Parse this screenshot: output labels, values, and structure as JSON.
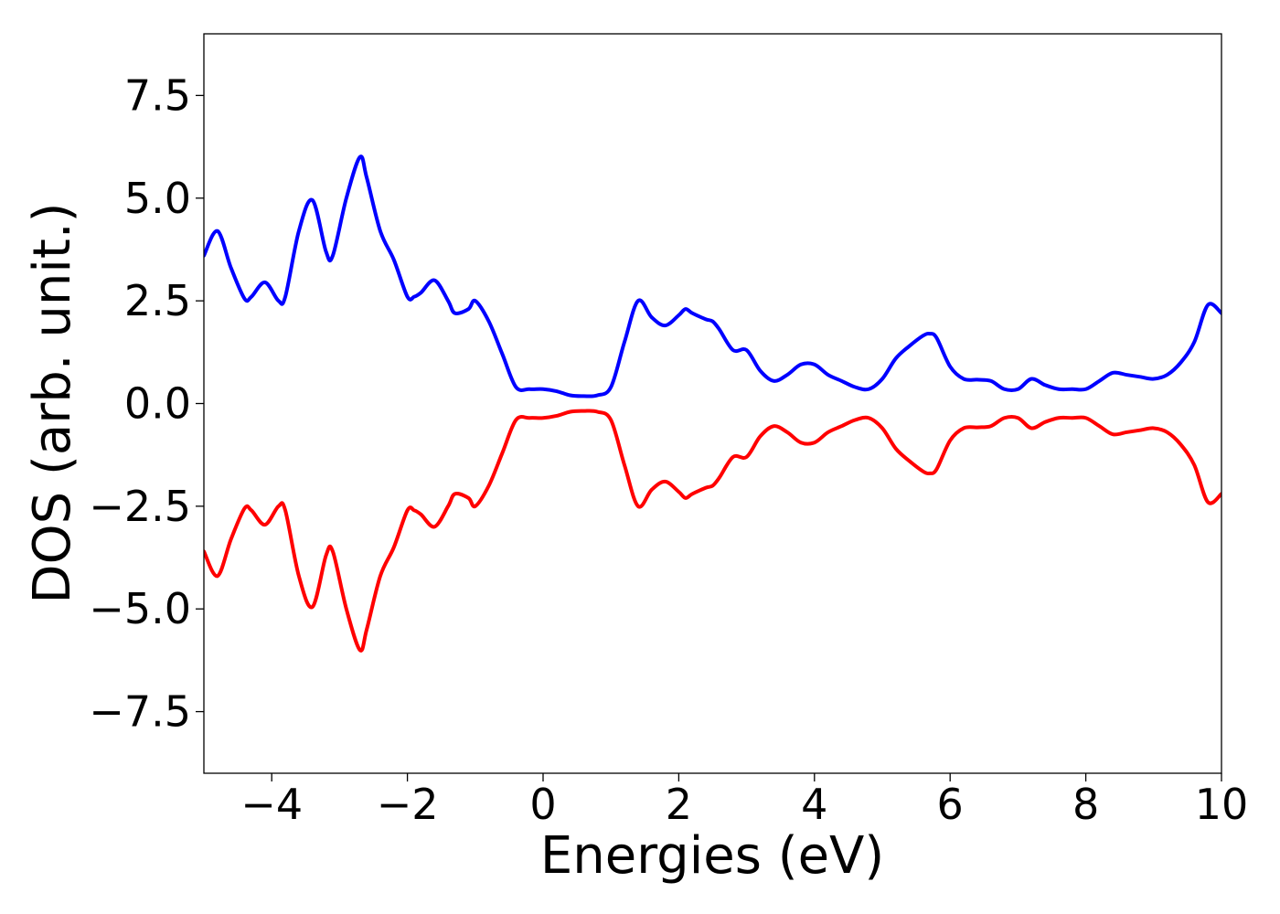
{
  "chart_data": {
    "type": "line",
    "title": "",
    "xlabel": "Energies (eV)",
    "ylabel": "DOS (arb. unit.)",
    "xlim": [
      -5,
      10
    ],
    "ylim": [
      -9,
      9
    ],
    "x_ticks": [
      -4,
      -2,
      0,
      2,
      4,
      6,
      8,
      10
    ],
    "x_tick_labels": [
      "−4",
      "−2",
      "0",
      "2",
      "4",
      "6",
      "8",
      "10"
    ],
    "y_ticks": [
      -7.5,
      -5.0,
      -2.5,
      0.0,
      2.5,
      5.0,
      7.5
    ],
    "y_tick_labels": [
      "−7.5",
      "−5.0",
      "−2.5",
      "0.0",
      "2.5",
      "5.0",
      "7.5"
    ],
    "grid": false,
    "legend": "none",
    "mirror_series": true,
    "x": [
      -5.0,
      -4.8,
      -4.6,
      -4.4,
      -4.3,
      -4.1,
      -3.9,
      -3.8,
      -3.6,
      -3.4,
      -3.2,
      -3.1,
      -2.9,
      -2.7,
      -2.6,
      -2.4,
      -2.2,
      -2.0,
      -1.9,
      -1.8,
      -1.6,
      -1.4,
      -1.3,
      -1.1,
      -1.0,
      -0.8,
      -0.6,
      -0.4,
      -0.2,
      0.0,
      0.2,
      0.4,
      0.6,
      0.8,
      1.0,
      1.2,
      1.4,
      1.6,
      1.8,
      2.0,
      2.1,
      2.2,
      2.4,
      2.5,
      2.6,
      2.8,
      3.0,
      3.2,
      3.4,
      3.6,
      3.8,
      4.0,
      4.2,
      4.4,
      4.6,
      4.8,
      5.0,
      5.2,
      5.4,
      5.6,
      5.7,
      5.8,
      6.0,
      6.2,
      6.4,
      6.6,
      6.8,
      7.0,
      7.2,
      7.4,
      7.6,
      7.8,
      8.0,
      8.2,
      8.4,
      8.6,
      8.8,
      9.0,
      9.2,
      9.4,
      9.6,
      9.8,
      10.0
    ],
    "series": [
      {
        "color": "#0000ff",
        "values": [
          3.6,
          4.2,
          3.3,
          2.55,
          2.6,
          2.95,
          2.5,
          2.6,
          4.2,
          4.95,
          3.7,
          3.6,
          5.0,
          6.0,
          5.5,
          4.2,
          3.5,
          2.6,
          2.6,
          2.7,
          3.0,
          2.5,
          2.2,
          2.3,
          2.5,
          2.0,
          1.2,
          0.4,
          0.35,
          0.35,
          0.3,
          0.2,
          0.18,
          0.2,
          0.4,
          1.5,
          2.5,
          2.1,
          1.9,
          2.15,
          2.3,
          2.2,
          2.05,
          2.0,
          1.8,
          1.3,
          1.3,
          0.8,
          0.55,
          0.7,
          0.95,
          0.95,
          0.7,
          0.55,
          0.4,
          0.35,
          0.6,
          1.1,
          1.4,
          1.65,
          1.7,
          1.6,
          0.9,
          0.6,
          0.58,
          0.55,
          0.35,
          0.35,
          0.6,
          0.45,
          0.35,
          0.35,
          0.35,
          0.55,
          0.75,
          0.7,
          0.65,
          0.6,
          0.7,
          1.0,
          1.5,
          2.4,
          2.2
        ]
      },
      {
        "color": "#ff0000",
        "values": [
          -3.6,
          -4.2,
          -3.3,
          -2.55,
          -2.6,
          -2.95,
          -2.5,
          -2.6,
          -4.2,
          -4.95,
          -3.7,
          -3.6,
          -5.0,
          -6.0,
          -5.5,
          -4.2,
          -3.5,
          -2.6,
          -2.6,
          -2.7,
          -3.0,
          -2.5,
          -2.2,
          -2.3,
          -2.5,
          -2.0,
          -1.2,
          -0.4,
          -0.35,
          -0.35,
          -0.3,
          -0.2,
          -0.18,
          -0.2,
          -0.4,
          -1.5,
          -2.5,
          -2.1,
          -1.9,
          -2.15,
          -2.3,
          -2.2,
          -2.05,
          -2.0,
          -1.8,
          -1.3,
          -1.3,
          -0.8,
          -0.55,
          -0.7,
          -0.95,
          -0.95,
          -0.7,
          -0.55,
          -0.4,
          -0.35,
          -0.6,
          -1.1,
          -1.4,
          -1.65,
          -1.7,
          -1.6,
          -0.9,
          -0.6,
          -0.58,
          -0.55,
          -0.35,
          -0.35,
          -0.6,
          -0.45,
          -0.35,
          -0.35,
          -0.35,
          -0.55,
          -0.75,
          -0.7,
          -0.65,
          -0.6,
          -0.7,
          -1.0,
          -1.5,
          -2.4,
          -2.2
        ]
      }
    ]
  }
}
